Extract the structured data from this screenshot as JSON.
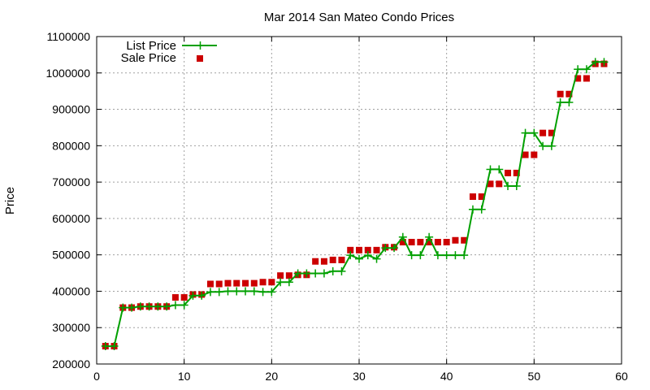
{
  "chart_data": {
    "type": "line",
    "title": "Mar 2014 San Mateo Condo Prices",
    "xlabel": "",
    "ylabel": "Price",
    "xlim": [
      0,
      60
    ],
    "ylim": [
      200000,
      1100000
    ],
    "xticks": [
      "0",
      "10",
      "20",
      "30",
      "40",
      "50",
      "60"
    ],
    "yticks": [
      "200000",
      "300000",
      "400000",
      "500000",
      "600000",
      "700000",
      "800000",
      "900000",
      "1000000",
      "1100000"
    ],
    "grid": true,
    "legend_position": "top-left",
    "series": [
      {
        "name": "List Price",
        "style": "linespoints",
        "color": "#00a000",
        "x": [
          1,
          2,
          3,
          4,
          5,
          6,
          7,
          8,
          9,
          10,
          11,
          12,
          13,
          14,
          15,
          16,
          17,
          18,
          19,
          20,
          21,
          22,
          23,
          24,
          25,
          26,
          27,
          28,
          29,
          30,
          31,
          32,
          33,
          34,
          35,
          36,
          37,
          38,
          39,
          40,
          41,
          42,
          43,
          44,
          45,
          46,
          47,
          48,
          49,
          50,
          51,
          52,
          53,
          54,
          55,
          56,
          57,
          58
        ],
        "y": [
          249000,
          249000,
          355000,
          355000,
          358000,
          358000,
          358000,
          358000,
          362000,
          362000,
          388000,
          388000,
          398000,
          398000,
          400000,
          400000,
          400000,
          400000,
          398000,
          398000,
          425000,
          425000,
          449000,
          449000,
          449000,
          449000,
          455000,
          455000,
          499000,
          489000,
          499000,
          489000,
          519000,
          519000,
          549000,
          499000,
          499000,
          549000,
          499000,
          499000,
          499000,
          499000,
          625000,
          625000,
          735000,
          735000,
          689000,
          689000,
          835000,
          835000,
          799000,
          799000,
          919000,
          919000,
          1010000,
          1010000,
          1030000,
          1030000
        ]
      },
      {
        "name": "Sale Price",
        "style": "points",
        "color": "#cc0000",
        "x": [
          1,
          2,
          3,
          4,
          5,
          6,
          7,
          8,
          9,
          10,
          11,
          12,
          13,
          14,
          15,
          16,
          17,
          18,
          19,
          20,
          21,
          22,
          23,
          24,
          25,
          26,
          27,
          28,
          29,
          30,
          31,
          32,
          33,
          34,
          35,
          36,
          37,
          38,
          39,
          40,
          41,
          42,
          43,
          44,
          45,
          46,
          47,
          48,
          49,
          50,
          51,
          52,
          53,
          54,
          55,
          56,
          57,
          58
        ],
        "y": [
          249000,
          249000,
          355000,
          355000,
          358000,
          358000,
          358000,
          358000,
          383000,
          383000,
          391000,
          391000,
          420000,
          420000,
          422000,
          422000,
          422000,
          422000,
          425000,
          425000,
          443000,
          443000,
          445000,
          445000,
          482000,
          482000,
          486000,
          486000,
          513000,
          513000,
          513000,
          513000,
          521000,
          521000,
          535000,
          535000,
          535000,
          535000,
          535000,
          535000,
          540000,
          540000,
          660000,
          660000,
          695000,
          695000,
          725000,
          725000,
          775000,
          775000,
          835000,
          835000,
          942000,
          942000,
          985000,
          985000,
          1025000,
          1025000
        ]
      }
    ]
  }
}
